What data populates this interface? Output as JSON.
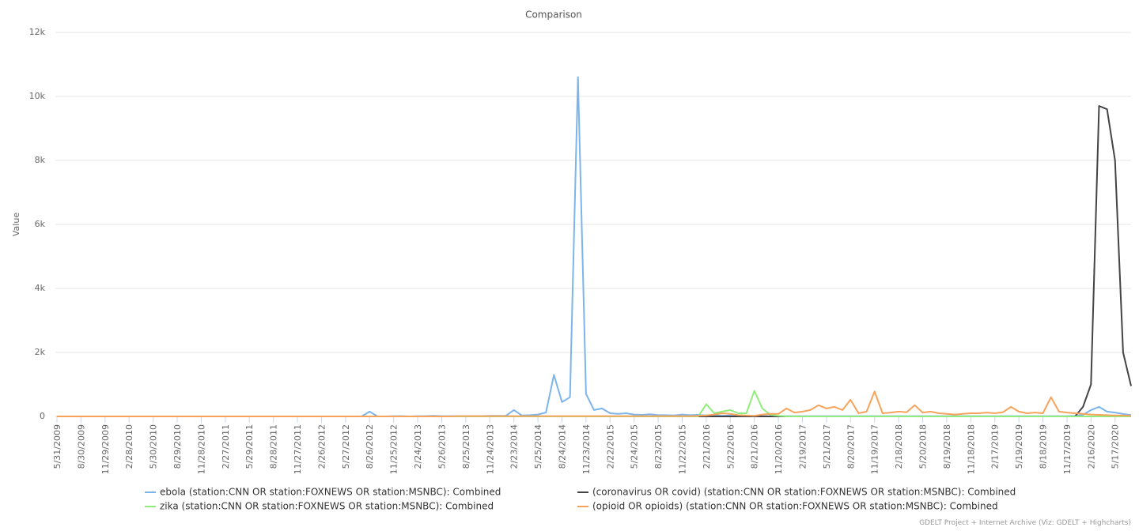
{
  "chart_data": {
    "type": "line",
    "title": "Comparison",
    "y_label": "Value",
    "credit": "GDELT Project + Internet Archive (Viz: GDELT + Highcharts)",
    "ylim": [
      0,
      12000
    ],
    "yticks": [
      0,
      {
        "value": 2000,
        "label": "2k"
      },
      {
        "value": 4000,
        "label": "4k"
      },
      {
        "value": 6000,
        "label": "6k"
      },
      {
        "value": 8000,
        "label": "8k"
      },
      {
        "value": 10000,
        "label": "10k"
      },
      {
        "value": 12000,
        "label": "12k"
      }
    ],
    "grid": true,
    "categories": [
      "5/31/2009",
      null,
      null,
      "8/30/2009",
      null,
      null,
      "11/29/2009",
      null,
      null,
      "2/28/2010",
      null,
      null,
      "5/30/2010",
      null,
      null,
      "8/29/2010",
      null,
      null,
      "11/28/2010",
      null,
      null,
      "2/27/2011",
      null,
      null,
      "5/29/2011",
      null,
      null,
      "8/28/2011",
      null,
      null,
      "11/27/2011",
      null,
      null,
      "2/26/2012",
      null,
      null,
      "5/27/2012",
      null,
      null,
      "8/26/2012",
      null,
      null,
      "11/25/2012",
      null,
      null,
      "2/24/2013",
      null,
      null,
      "5/26/2013",
      null,
      null,
      "8/25/2013",
      null,
      null,
      "11/24/2013",
      null,
      null,
      "2/23/2014",
      null,
      null,
      "5/25/2014",
      null,
      null,
      "8/24/2014",
      null,
      null,
      "11/23/2014",
      null,
      null,
      "2/22/2015",
      null,
      null,
      "5/24/2015",
      null,
      null,
      "8/23/2015",
      null,
      null,
      "11/22/2015",
      null,
      null,
      "2/21/2016",
      null,
      null,
      "5/22/2016",
      null,
      null,
      "8/21/2016",
      null,
      null,
      "11/20/2016",
      null,
      null,
      "2/19/2017",
      null,
      null,
      "5/21/2017",
      null,
      null,
      "8/20/2017",
      null,
      null,
      "11/19/2017",
      null,
      null,
      "2/18/2018",
      null,
      null,
      "5/20/2018",
      null,
      null,
      "8/19/2018",
      null,
      null,
      "11/18/2018",
      null,
      null,
      "2/17/2019",
      null,
      null,
      "5/19/2019",
      null,
      null,
      "8/18/2019",
      null,
      null,
      "11/17/2019",
      null,
      null,
      "2/16/2020",
      null,
      null,
      "5/17/2020",
      null,
      null
    ],
    "series": [
      {
        "name": "ebola (station:CNN OR station:FOXNEWS OR station:MSNBC): Combined",
        "color": "#7cb5ec",
        "values": [
          0,
          0,
          0,
          0,
          0,
          0,
          0,
          0,
          0,
          0,
          0,
          0,
          0,
          0,
          0,
          0,
          0,
          0,
          0,
          0,
          0,
          0,
          0,
          0,
          0,
          0,
          0,
          0,
          0,
          0,
          0,
          0,
          0,
          0,
          0,
          0,
          0,
          0,
          0,
          150,
          0,
          0,
          10,
          10,
          0,
          10,
          10,
          20,
          10,
          10,
          10,
          10,
          10,
          10,
          20,
          20,
          20,
          200,
          30,
          40,
          60,
          120,
          1300,
          450,
          600,
          10600,
          700,
          200,
          250,
          100,
          80,
          100,
          60,
          50,
          70,
          40,
          40,
          30,
          60,
          40,
          50,
          30,
          30,
          20,
          30,
          20,
          20,
          20,
          10,
          10,
          10,
          10,
          10,
          10,
          10,
          10,
          10,
          10,
          10,
          10,
          10,
          10,
          10,
          10,
          10,
          10,
          10,
          10,
          10,
          10,
          10,
          10,
          10,
          10,
          10,
          10,
          10,
          10,
          10,
          10,
          10,
          10,
          10,
          10,
          10,
          10,
          10,
          20,
          50,
          200,
          300,
          150,
          120,
          80,
          40
        ]
      },
      {
        "name": "(coronavirus OR covid) (station:CNN OR station:FOXNEWS OR station:MSNBC): Combined",
        "color": "#434348",
        "values": [
          0,
          0,
          0,
          0,
          0,
          0,
          0,
          0,
          0,
          0,
          0,
          0,
          0,
          0,
          0,
          0,
          0,
          0,
          0,
          0,
          0,
          0,
          0,
          0,
          0,
          0,
          0,
          0,
          0,
          0,
          0,
          0,
          0,
          0,
          0,
          0,
          0,
          0,
          0,
          0,
          0,
          0,
          0,
          0,
          0,
          0,
          0,
          0,
          0,
          0,
          0,
          0,
          0,
          0,
          0,
          0,
          0,
          0,
          0,
          0,
          0,
          0,
          0,
          0,
          0,
          0,
          0,
          0,
          0,
          0,
          0,
          0,
          0,
          0,
          0,
          0,
          0,
          0,
          0,
          0,
          0,
          0,
          0,
          0,
          0,
          0,
          0,
          0,
          0,
          0,
          0,
          0,
          0,
          0,
          0,
          0,
          0,
          0,
          0,
          0,
          0,
          0,
          0,
          0,
          0,
          0,
          0,
          0,
          0,
          0,
          0,
          0,
          0,
          0,
          0,
          0,
          0,
          0,
          0,
          0,
          0,
          0,
          0,
          0,
          0,
          0,
          0,
          0,
          300,
          1000,
          9700,
          9600,
          8000,
          2000,
          950
        ]
      },
      {
        "name": "zika (station:CNN OR station:FOXNEWS OR station:MSNBC): Combined",
        "color": "#90ed7d",
        "values": [
          0,
          0,
          0,
          0,
          0,
          0,
          0,
          0,
          0,
          0,
          0,
          0,
          0,
          0,
          0,
          0,
          0,
          0,
          0,
          0,
          0,
          0,
          0,
          0,
          0,
          0,
          0,
          0,
          0,
          0,
          0,
          0,
          0,
          0,
          0,
          0,
          0,
          0,
          0,
          0,
          0,
          0,
          0,
          0,
          0,
          0,
          0,
          0,
          0,
          0,
          0,
          0,
          0,
          0,
          0,
          0,
          0,
          0,
          0,
          0,
          0,
          0,
          0,
          0,
          0,
          0,
          0,
          0,
          0,
          0,
          0,
          0,
          0,
          0,
          0,
          0,
          0,
          0,
          0,
          0,
          0,
          380,
          100,
          150,
          200,
          100,
          100,
          800,
          250,
          50,
          20,
          0,
          0,
          0,
          0,
          0,
          0,
          0,
          0,
          0,
          0,
          0,
          0,
          0,
          0,
          0,
          0,
          0,
          0,
          0,
          0,
          0,
          0,
          0,
          0,
          0,
          0,
          0,
          0,
          0,
          0,
          0,
          0,
          0,
          0,
          0,
          0,
          0,
          0,
          0,
          0,
          0,
          0,
          0,
          0
        ]
      },
      {
        "name": "(opioid OR opioids) (station:CNN OR station:FOXNEWS OR station:MSNBC): Combined",
        "color": "#f7a35c",
        "values": [
          0,
          0,
          0,
          0,
          0,
          0,
          0,
          0,
          0,
          0,
          0,
          0,
          0,
          0,
          0,
          0,
          0,
          0,
          0,
          0,
          0,
          0,
          0,
          0,
          0,
          0,
          0,
          0,
          0,
          0,
          0,
          0,
          0,
          0,
          0,
          0,
          0,
          0,
          0,
          0,
          0,
          0,
          0,
          0,
          0,
          0,
          0,
          0,
          0,
          0,
          10,
          10,
          10,
          10,
          10,
          10,
          10,
          10,
          10,
          10,
          10,
          10,
          10,
          10,
          10,
          10,
          10,
          10,
          10,
          10,
          10,
          10,
          10,
          10,
          10,
          10,
          10,
          10,
          10,
          10,
          20,
          30,
          60,
          100,
          80,
          40,
          30,
          20,
          60,
          80,
          80,
          250,
          120,
          150,
          200,
          350,
          250,
          300,
          200,
          520,
          100,
          150,
          780,
          100,
          120,
          150,
          130,
          350,
          120,
          150,
          100,
          80,
          60,
          80,
          100,
          100,
          120,
          100,
          130,
          300,
          150,
          100,
          120,
          100,
          600,
          150,
          120,
          100,
          80,
          60,
          50,
          40,
          30,
          30,
          20
        ]
      }
    ]
  }
}
